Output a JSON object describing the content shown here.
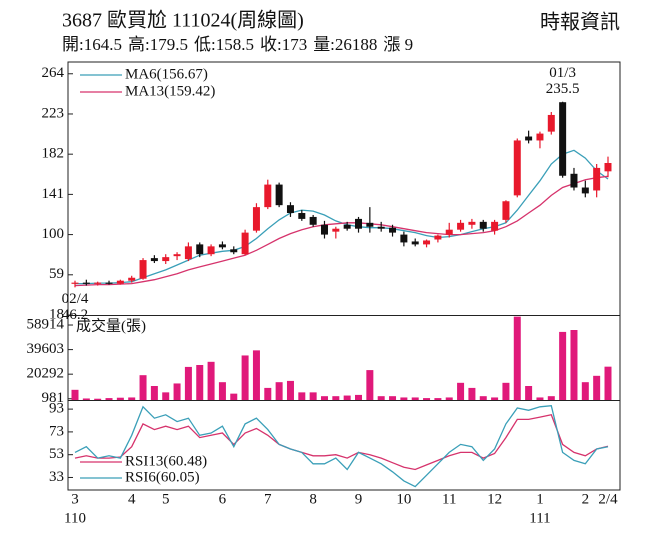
{
  "header": {
    "title": "3687 歐買尬 111024(周線圖)",
    "source": "時報資訊",
    "summary": [
      {
        "label": "開:",
        "value": 164.5
      },
      {
        "label": "高:",
        "value": 179.5
      },
      {
        "label": "低:",
        "value": 158.5
      },
      {
        "label": "收:",
        "value": 173
      },
      {
        "label": "量:",
        "value": 26188
      },
      {
        "label": "漲 ",
        "value": 9
      }
    ]
  },
  "chart_data": [
    {
      "type": "candlestick",
      "categories": [
        "3",
        null,
        null,
        null,
        null,
        "4",
        null,
        null,
        "5",
        null,
        null,
        null,
        null,
        "6",
        null,
        null,
        null,
        "7",
        null,
        null,
        null,
        "8",
        null,
        null,
        null,
        "9",
        null,
        null,
        null,
        "10",
        null,
        null,
        null,
        "11",
        null,
        null,
        null,
        "12",
        null,
        null,
        null,
        "1",
        null,
        null,
        null,
        "2",
        null,
        "2/4"
      ],
      "year_labels": [
        "110",
        null,
        null,
        null,
        null,
        null,
        null,
        null,
        null,
        null,
        null,
        null,
        null,
        null,
        null,
        null,
        null,
        null,
        null,
        null,
        null,
        null,
        null,
        null,
        null,
        null,
        null,
        null,
        null,
        null,
        null,
        null,
        null,
        null,
        null,
        null,
        null,
        null,
        null,
        null,
        null,
        "111",
        null,
        null,
        null,
        null,
        null,
        null
      ],
      "open": [
        50,
        51,
        50,
        51,
        50,
        53,
        55,
        76,
        73,
        78,
        75,
        90,
        80,
        90,
        85,
        80,
        104,
        128,
        151,
        130,
        122,
        118,
        110,
        103,
        110,
        116,
        112,
        108,
        107,
        100,
        93,
        90,
        95,
        100,
        105,
        110,
        113,
        104,
        115,
        140,
        200,
        196,
        205,
        235,
        162,
        148,
        145,
        164.5
      ],
      "high": [
        53,
        54,
        52,
        53,
        54,
        58,
        76,
        79,
        80,
        82,
        92,
        92,
        90,
        93,
        88,
        105,
        132,
        156,
        153,
        133,
        125,
        120,
        114,
        108,
        113,
        118,
        128,
        113,
        110,
        103,
        96,
        95,
        100,
        112,
        115,
        116,
        115,
        115,
        135,
        198,
        206,
        205,
        225,
        235.5,
        168,
        155,
        172,
        179.5
      ],
      "low": [
        46.2,
        48,
        48,
        49,
        49,
        51,
        54,
        71,
        70,
        74,
        73,
        77,
        78,
        85,
        80,
        79,
        102,
        126,
        128,
        118,
        114,
        108,
        96,
        96,
        104,
        102,
        102,
        103,
        98,
        88,
        88,
        87,
        92,
        97,
        103,
        106,
        103,
        100,
        112,
        138,
        193,
        188,
        202,
        158,
        145,
        138,
        138,
        158.5
      ],
      "close": [
        51,
        50,
        51,
        50,
        53,
        56,
        74,
        73,
        77,
        80,
        88,
        80,
        88,
        87,
        82,
        102,
        128,
        151,
        130,
        122,
        116,
        110,
        100,
        106,
        106,
        106,
        108,
        106,
        102,
        92,
        90,
        94,
        99,
        105,
        112,
        113,
        106,
        113,
        134,
        196,
        196,
        203,
        222,
        160,
        148,
        142,
        168,
        173
      ],
      "up_color": "#e8192c",
      "down_color": "#111111",
      "ylim": [
        18,
        276
      ],
      "yticks": [
        18,
        59,
        100,
        141,
        182,
        223,
        264
      ],
      "series": [
        {
          "name": "MA6(156.67)",
          "color": "#3a9fb8",
          "values": [
            50,
            50,
            50.5,
            50.5,
            51,
            52,
            56,
            60,
            64,
            69,
            74,
            79,
            81,
            83,
            84,
            88,
            96,
            106,
            115,
            122,
            125,
            124,
            120,
            114,
            110,
            108,
            107,
            107,
            106,
            104,
            102,
            99,
            97,
            98,
            100,
            103,
            106,
            108,
            112,
            125,
            140,
            155,
            172,
            182,
            186,
            178,
            165,
            156.67
          ]
        },
        {
          "name": "MA13(159.42)",
          "color": "#d6336c",
          "values": [
            48,
            48.5,
            49,
            49,
            49.5,
            50,
            52,
            54,
            57,
            60,
            64,
            67,
            70,
            73,
            76,
            79,
            84,
            90,
            96,
            101,
            105,
            108,
            110,
            111,
            112,
            112,
            111,
            110,
            108,
            106,
            104,
            102,
            101,
            100,
            100,
            101,
            102,
            104,
            108,
            114,
            122,
            130,
            140,
            148,
            152,
            156,
            158,
            159.42
          ]
        }
      ],
      "annotations": [
        {
          "date": "01/3",
          "value": 235.5,
          "at": "high"
        },
        {
          "date": "02/4",
          "value": 46.2,
          "at": "low"
        }
      ]
    },
    {
      "type": "bar",
      "title": "成交量(張)",
      "color": "#e0197a",
      "values": [
        8000,
        1200,
        1000,
        1500,
        1800,
        2000,
        19500,
        11000,
        6000,
        13000,
        26000,
        27500,
        30000,
        14000,
        5000,
        35000,
        39000,
        9500,
        14000,
        15000,
        6000,
        6000,
        3000,
        3000,
        3500,
        4000,
        23500,
        3000,
        3000,
        2000,
        2000,
        1500,
        1500,
        2000,
        13500,
        9500,
        3000,
        2000,
        13500,
        65500,
        11000,
        2000,
        3000,
        53500,
        55000,
        14000,
        19000,
        26188
      ],
      "ylim": [
        0,
        66000
      ],
      "yticks": [
        981,
        20292,
        39603,
        58914
      ]
    },
    {
      "type": "line",
      "ylim": [
        22,
        101
      ],
      "yticks": [
        33,
        53,
        73,
        93
      ],
      "series": [
        {
          "name": "RSI13(60.48)",
          "color": "#d6336c",
          "values": [
            50,
            52,
            50,
            50,
            51,
            60,
            80,
            75,
            78,
            75,
            78,
            68,
            70,
            72,
            62,
            72,
            76,
            70,
            62,
            58,
            55,
            52,
            52,
            53,
            50,
            55,
            53,
            50,
            46,
            42,
            40,
            44,
            48,
            52,
            55,
            55,
            50,
            54,
            68,
            84,
            84,
            86,
            88,
            62,
            55,
            52,
            58,
            60.48
          ]
        },
        {
          "name": "RSI6(60.05)",
          "color": "#3a9fb8",
          "values": [
            55,
            60,
            50,
            52,
            50,
            70,
            95,
            85,
            88,
            82,
            85,
            70,
            72,
            78,
            60,
            80,
            85,
            75,
            62,
            58,
            55,
            45,
            45,
            50,
            40,
            55,
            50,
            45,
            38,
            30,
            25,
            35,
            45,
            55,
            62,
            60,
            48,
            58,
            80,
            94,
            92,
            95,
            96,
            55,
            48,
            45,
            58,
            60.05
          ]
        }
      ]
    }
  ]
}
